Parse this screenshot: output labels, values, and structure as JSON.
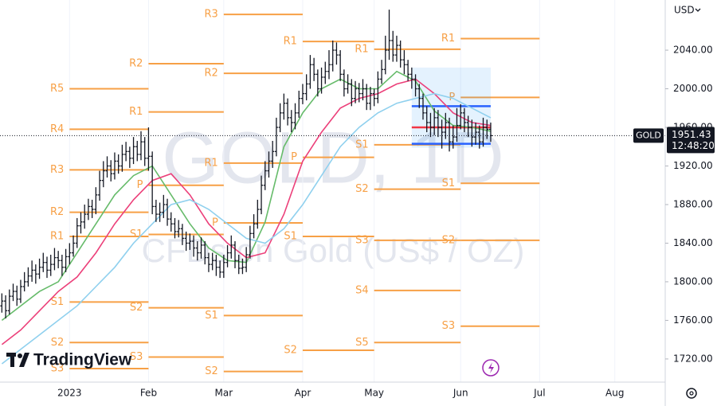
{
  "chart_data": {
    "type": "ohlc",
    "symbol": "GOLD",
    "watermark_title": "GOLD, 1D",
    "watermark_subtitle": "CFDs on Gold (US$ / OZ)",
    "currency": "USD",
    "countdown": "12:48:20",
    "brand": "TradingView",
    "bar_color": "#131722",
    "categories": [
      null,
      null,
      null,
      null,
      null,
      null,
      null,
      null,
      null,
      null,
      null,
      null,
      null,
      null,
      null,
      null,
      null,
      null,
      "2023",
      null,
      null,
      null,
      null,
      null,
      null,
      null,
      null,
      null,
      null,
      null,
      null,
      null,
      null,
      null,
      null,
      null,
      null,
      null,
      null,
      "Feb",
      null,
      null,
      null,
      null,
      null,
      null,
      null,
      null,
      null,
      null,
      null,
      null,
      null,
      null,
      null,
      null,
      null,
      null,
      null,
      "Mar",
      null,
      null,
      null,
      null,
      null,
      null,
      null,
      null,
      null,
      null,
      null,
      null,
      null,
      null,
      null,
      null,
      null,
      null,
      null,
      null,
      "Apr",
      null,
      null,
      null,
      null,
      null,
      null,
      null,
      null,
      null,
      null,
      null,
      null,
      null,
      null,
      null,
      null,
      null,
      null,
      "May",
      null,
      null,
      null,
      null,
      null,
      null,
      null,
      null,
      null,
      null,
      null,
      null,
      null,
      null,
      null,
      null,
      null,
      null,
      null,
      null,
      null,
      null,
      "Jun",
      null,
      null,
      null,
      null,
      null,
      null,
      null,
      null,
      null,
      null,
      null,
      null,
      null,
      null,
      null,
      null,
      null,
      null,
      null,
      null,
      "Jul",
      null,
      null,
      null,
      null,
      null,
      null,
      null,
      null,
      null,
      null,
      null,
      null,
      null,
      null,
      null,
      null,
      null,
      null,
      null,
      "Aug"
    ],
    "open": [
      1775,
      1780,
      1770,
      1785,
      1790,
      1782,
      1795,
      1800,
      1806,
      1812,
      1808,
      1815,
      1820,
      1812,
      1818,
      1825,
      1822,
      1815,
      1826,
      1830,
      1840,
      1858,
      1862,
      1870,
      1878,
      1875,
      1890,
      1905,
      1915,
      1920,
      1912,
      1925,
      1920,
      1932,
      1935,
      1928,
      1940,
      1932,
      1945,
      1928,
      1930,
      1878,
      1870,
      1872,
      1880,
      1865,
      1860,
      1852,
      1855,
      1845,
      1840,
      1842,
      1835,
      1830,
      1838,
      1825,
      1818,
      1822,
      1815,
      1810,
      1820,
      1830,
      1838,
      1822,
      1814,
      1815,
      1828,
      1850,
      1860,
      1875,
      1900,
      1915,
      1925,
      1935,
      1960,
      1975,
      1985,
      1970,
      1965,
      1975,
      1990,
      1995,
      2005,
      2025,
      2015,
      2000,
      2012,
      2018,
      2025,
      2040,
      2035,
      2015,
      2000,
      2005,
      1990,
      2000,
      1995,
      2000,
      1985,
      1995,
      1990,
      2010,
      2020,
      2040,
      2050,
      2035,
      2045,
      2030,
      2025,
      2015,
      2010,
      2000,
      1990,
      1975,
      1965,
      1960,
      1970,
      1960,
      1955,
      1965,
      1945,
      1950,
      1962,
      1975,
      1965,
      1960,
      1950,
      1955,
      1945,
      1960,
      1958,
      null,
      null,
      null,
      null,
      null,
      null,
      null,
      null,
      null,
      null,
      null,
      null,
      null,
      null,
      null,
      null,
      null,
      null,
      null,
      null,
      null,
      null,
      null,
      null,
      null,
      null,
      null,
      null,
      null,
      null,
      null,
      null,
      null
    ],
    "high": [
      1788,
      1786,
      1792,
      1798,
      1796,
      1802,
      1810,
      1815,
      1822,
      1818,
      1824,
      1830,
      1826,
      1828,
      1835,
      1832,
      1828,
      1834,
      1840,
      1848,
      1866,
      1872,
      1880,
      1886,
      1885,
      1898,
      1915,
      1925,
      1930,
      1926,
      1934,
      1932,
      1942,
      1945,
      1940,
      1950,
      1946,
      1956,
      1950,
      1960,
      1935,
      1885,
      1882,
      1890,
      1886,
      1872,
      1866,
      1864,
      1860,
      1852,
      1850,
      1848,
      1842,
      1846,
      1842,
      1830,
      1830,
      1828,
      1822,
      1828,
      1838,
      1848,
      1842,
      1828,
      1824,
      1836,
      1858,
      1870,
      1885,
      1910,
      1925,
      1935,
      1946,
      1970,
      1985,
      1995,
      1990,
      1978,
      1985,
      1998,
      2005,
      2015,
      2035,
      2032,
      2020,
      2022,
      2028,
      2040,
      2050,
      2048,
      2040,
      2020,
      2015,
      2010,
      2008,
      2006,
      2010,
      2005,
      2002,
      2000,
      2018,
      2030,
      2055,
      2082,
      2060,
      2055,
      2050,
      2040,
      2030,
      2022,
      2015,
      2005,
      1995,
      1982,
      1975,
      1980,
      1978,
      1968,
      1975,
      1970,
      1962,
      1980,
      1984,
      1980,
      1972,
      1968,
      1965,
      1962,
      1970,
      1968,
      1965,
      null,
      null,
      null,
      null,
      null,
      null,
      null,
      null,
      null,
      null,
      null,
      null,
      null,
      null,
      null,
      null,
      null,
      null,
      null,
      null,
      null,
      null,
      null,
      null,
      null,
      null,
      null,
      null,
      null,
      null,
      null,
      null,
      null
    ],
    "low": [
      1768,
      1762,
      1766,
      1780,
      1775,
      1778,
      1790,
      1795,
      1800,
      1798,
      1803,
      1810,
      1804,
      1806,
      1812,
      1814,
      1806,
      1810,
      1818,
      1826,
      1835,
      1850,
      1855,
      1864,
      1866,
      1870,
      1884,
      1898,
      1908,
      1904,
      1906,
      1912,
      1914,
      1925,
      1918,
      1922,
      1925,
      1926,
      1920,
      1915,
      1870,
      1862,
      1862,
      1866,
      1858,
      1852,
      1845,
      1846,
      1838,
      1832,
      1833,
      1826,
      1822,
      1824,
      1818,
      1810,
      1812,
      1806,
      1804,
      1804,
      1815,
      1824,
      1814,
      1808,
      1808,
      1810,
      1824,
      1845,
      1855,
      1870,
      1895,
      1908,
      1918,
      1930,
      1955,
      1968,
      1962,
      1955,
      1958,
      1970,
      1984,
      1988,
      2000,
      2008,
      1992,
      1995,
      2005,
      2010,
      2018,
      2025,
      2008,
      1992,
      1995,
      1982,
      1985,
      1986,
      1988,
      1978,
      1978,
      1982,
      1985,
      2005,
      2015,
      2030,
      2028,
      2028,
      2022,
      2015,
      2008,
      2000,
      1992,
      1980,
      1968,
      1955,
      1950,
      1952,
      1950,
      1938,
      1948,
      1935,
      1938,
      1945,
      1958,
      1955,
      1950,
      1940,
      1942,
      1938,
      1940,
      1948,
      1945,
      null,
      null,
      null,
      null,
      null,
      null,
      null,
      null,
      null,
      null,
      null,
      null,
      null,
      null,
      null,
      null,
      null,
      null,
      null,
      null,
      null,
      null,
      null,
      null,
      null,
      null,
      null,
      null,
      null,
      null,
      null,
      null,
      null
    ],
    "close": [
      1780,
      1770,
      1785,
      1790,
      1782,
      1795,
      1800,
      1806,
      1812,
      1808,
      1815,
      1820,
      1812,
      1818,
      1825,
      1822,
      1815,
      1826,
      1830,
      1840,
      1858,
      1862,
      1870,
      1878,
      1875,
      1890,
      1905,
      1915,
      1920,
      1912,
      1925,
      1920,
      1932,
      1935,
      1928,
      1940,
      1932,
      1945,
      1928,
      1930,
      1878,
      1870,
      1872,
      1880,
      1865,
      1860,
      1852,
      1855,
      1845,
      1840,
      1842,
      1835,
      1830,
      1838,
      1825,
      1818,
      1822,
      1815,
      1810,
      1820,
      1830,
      1838,
      1822,
      1814,
      1815,
      1828,
      1850,
      1860,
      1875,
      1900,
      1915,
      1925,
      1935,
      1960,
      1975,
      1985,
      1970,
      1965,
      1975,
      1990,
      1995,
      2005,
      2025,
      2015,
      2000,
      2012,
      2018,
      2025,
      2040,
      2035,
      2015,
      2000,
      2005,
      1990,
      2000,
      1995,
      2000,
      1985,
      1995,
      1990,
      2010,
      2020,
      2040,
      2050,
      2035,
      2045,
      2030,
      2025,
      2015,
      2010,
      2000,
      1990,
      1975,
      1965,
      1960,
      1970,
      1960,
      1955,
      1965,
      1945,
      1950,
      1962,
      1975,
      1965,
      1960,
      1950,
      1955,
      1945,
      1960,
      1958,
      1951.43,
      null,
      null,
      null,
      null,
      null,
      null,
      null,
      null,
      null,
      null,
      null,
      null,
      null,
      null,
      null,
      null,
      null,
      null,
      null,
      null,
      null,
      null,
      null,
      null,
      null,
      null,
      null,
      null,
      null,
      null,
      null,
      null,
      null
    ],
    "series": [
      {
        "color": "#66bb6a",
        "x": [
          0,
          5,
          10,
          15,
          20,
          25,
          30,
          35,
          40,
          45,
          50,
          55,
          60,
          65,
          70,
          75,
          80,
          85,
          90,
          95,
          100,
          105,
          110,
          115,
          120,
          125,
          130
        ],
        "values": [
          1760,
          1775,
          1790,
          1800,
          1830,
          1860,
          1890,
          1910,
          1920,
          1890,
          1860,
          1835,
          1822,
          1820,
          1862,
          1940,
          1975,
          2000,
          2010,
          2000,
          2000,
          2018,
          2008,
          1977,
          1962,
          1960,
          1956
        ]
      },
      {
        "color": "#ec407a",
        "x": [
          0,
          5,
          10,
          15,
          20,
          25,
          30,
          35,
          40,
          45,
          50,
          55,
          60,
          65,
          70,
          75,
          80,
          85,
          90,
          95,
          100,
          105,
          110,
          115,
          120,
          125,
          130
        ],
        "values": [
          1735,
          1750,
          1770,
          1790,
          1805,
          1830,
          1860,
          1885,
          1905,
          1912,
          1890,
          1860,
          1840,
          1825,
          1830,
          1870,
          1925,
          1955,
          1980,
          1990,
          1995,
          2005,
          2010,
          1995,
          1975,
          1965,
          1962
        ]
      },
      {
        "color": "#8fd0ee",
        "x": [
          0,
          5,
          10,
          15,
          20,
          25,
          30,
          35,
          40,
          45,
          50,
          55,
          60,
          65,
          70,
          75,
          80,
          85,
          90,
          95,
          100,
          105,
          110,
          115,
          120,
          125,
          130
        ],
        "values": [
          1715,
          1730,
          1745,
          1760,
          1775,
          1795,
          1815,
          1840,
          1860,
          1880,
          1885,
          1875,
          1860,
          1845,
          1840,
          1855,
          1880,
          1910,
          1940,
          1960,
          1975,
          1985,
          1990,
          1995,
          1990,
          1980,
          1970
        ]
      }
    ],
    "pivot_color": "#f7a046",
    "pivots": [
      {
        "x": [
          18,
          39
        ],
        "levels": [
          {
            "label": "R5",
            "value": 2000
          },
          {
            "label": "R4",
            "value": 1958
          },
          {
            "label": "R3",
            "value": 1916
          },
          {
            "label": "R2",
            "value": 1872
          },
          {
            "label": "R1",
            "value": 1847
          },
          {
            "label": "S1",
            "value": 1779
          },
          {
            "label": "S2",
            "value": 1737
          },
          {
            "label": "S3",
            "value": 1710
          }
        ]
      },
      {
        "x": [
          39,
          59
        ],
        "levels": [
          {
            "label": "R2",
            "value": 2026
          },
          {
            "label": "R1",
            "value": 1976
          },
          {
            "label": "P",
            "value": 1900
          },
          {
            "label": "S1",
            "value": 1849
          },
          {
            "label": "S2",
            "value": 1773
          },
          {
            "label": "S3",
            "value": 1722
          }
        ]
      },
      {
        "x": [
          59,
          80
        ],
        "levels": [
          {
            "label": "R3",
            "value": 2077
          },
          {
            "label": "R2",
            "value": 2016
          },
          {
            "label": "R1",
            "value": 1923
          },
          {
            "label": "P",
            "value": 1861
          },
          {
            "label": "S1",
            "value": 1765
          },
          {
            "label": "S2",
            "value": 1707
          }
        ]
      },
      {
        "x": [
          80,
          99
        ],
        "levels": [
          {
            "label": "R1",
            "value": 2049
          },
          {
            "label": "P",
            "value": 1929
          },
          {
            "label": "S1",
            "value": 1847
          },
          {
            "label": "S2",
            "value": 1729
          }
        ]
      },
      {
        "x": [
          99,
          122
        ],
        "levels": [
          {
            "label": "R1",
            "value": 2041
          },
          {
            "label": "S1",
            "value": 1942
          },
          {
            "label": "S2",
            "value": 1896
          },
          {
            "label": "S3",
            "value": 1843
          },
          {
            "label": "S4",
            "value": 1791
          },
          {
            "label": "S5",
            "value": 1737
          }
        ]
      },
      {
        "x": [
          122,
          143
        ],
        "levels": [
          {
            "label": "R1",
            "value": 2052
          },
          {
            "label": "P",
            "value": 1991
          },
          {
            "label": "S1",
            "value": 1902
          },
          {
            "label": "S2",
            "value": 1843
          },
          {
            "label": "S3",
            "value": 1754
          }
        ]
      }
    ],
    "value_area": {
      "x": [
        109,
        130
      ],
      "profile_high": 2022,
      "profile_low": 1939,
      "high": 1982,
      "poc": 1960,
      "low": 1943
    },
    "ylim": [
      1696,
      2092
    ],
    "yticks": [
      {
        "value": 1720,
        "label": "1720.00"
      },
      {
        "value": 1760,
        "label": "1760.00"
      },
      {
        "value": 1800,
        "label": "1800.00"
      },
      {
        "value": 1840,
        "label": "1840.00"
      },
      {
        "value": 1880,
        "label": "1880.00"
      },
      {
        "value": 1920,
        "label": "1920.00"
      },
      {
        "value": 1960,
        "label": "1960.00"
      },
      {
        "value": 2000,
        "label": "2000.00"
      },
      {
        "value": 2040,
        "label": "2040.00"
      }
    ],
    "grid": true
  }
}
